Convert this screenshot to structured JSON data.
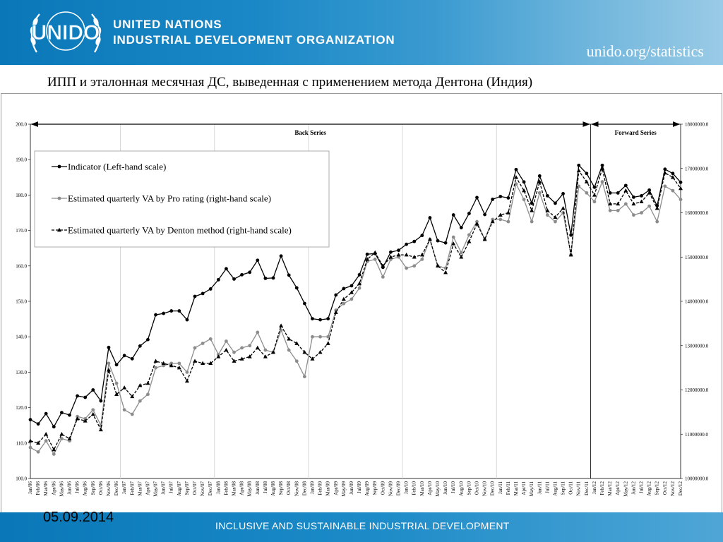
{
  "header": {
    "logo_text": "UNIDO",
    "org_line1": "UNITED NATIONS",
    "org_line2": "INDUSTRIAL DEVELOPMENT ORGANIZATION",
    "website": "unido.org/statistics"
  },
  "slide_title": "ИПП и  эталонная месячная ДС, выведенная с применением метода Дентона (Индия)",
  "footer": {
    "date": "05.09.2014",
    "slogan": "INCLUSIVE AND SUSTAINABLE INDUSTRIAL DEVELOPMENT"
  },
  "colors": {
    "header_blue": "#1a88c6",
    "indicator": "#000000",
    "pro_rating": "#8c8c8c",
    "denton": "#000000"
  },
  "chart_data": {
    "type": "line",
    "title": "",
    "xlabel": "",
    "ylabel_left": "",
    "ylabel_right": "",
    "ylim_left": [
      100,
      200
    ],
    "ylim_right": [
      10000000,
      18000000
    ],
    "left_ticks": [
      "100.0",
      "110.0",
      "120.0",
      "130.0",
      "140.0",
      "150.0",
      "160.0",
      "170.0",
      "180.0",
      "190.0",
      "200.0"
    ],
    "right_ticks": [
      "10000000.0",
      "11000000.0",
      "12000000.0",
      "13000000.0",
      "14000000.0",
      "15000000.0",
      "16000000.0",
      "17000000.0",
      "18000000.0"
    ],
    "grid": "vertical lines every 12 months",
    "legend_position": "top-left",
    "regions": [
      {
        "label": "Back Series",
        "from": "Jan/06",
        "to": "Dec/11"
      },
      {
        "label": "Forward Series",
        "from": "Jan/12",
        "to": "Dec/12"
      }
    ],
    "categories": [
      "Jan/06",
      "Feb/06",
      "Mar/06",
      "Apr/06",
      "May/06",
      "Jun/06",
      "Jul/06",
      "Aug/06",
      "Sep/06",
      "Oct/06",
      "Nov/06",
      "Dec/06",
      "Jan/07",
      "Feb/07",
      "Mar/07",
      "Apr/07",
      "May/07",
      "Jun/07",
      "Jul/07",
      "Aug/07",
      "Sep/07",
      "Oct/07",
      "Nov/07",
      "Dec/07",
      "Jan/08",
      "Feb/08",
      "Mar/08",
      "Apr/08",
      "May/08",
      "Jun/08",
      "Jul/08",
      "Aug/08",
      "Sep/08",
      "Oct/08",
      "Nov/08",
      "Dec/08",
      "Jan/09",
      "Feb/09",
      "Mar/09",
      "Apr/09",
      "May/09",
      "Jun/09",
      "Jul/09",
      "Aug/09",
      "Sep/09",
      "Oct/09",
      "Nov/09",
      "Dec/09",
      "Jan/10",
      "Feb/10",
      "Mar/10",
      "Apr/10",
      "May/10",
      "Jun/10",
      "Jul/10",
      "Aug/10",
      "Sep/10",
      "Oct/10",
      "Nov/10",
      "Dec/10",
      "Jan/11",
      "Feb/11",
      "Mar/11",
      "Apr/11",
      "May/11",
      "Jun/11",
      "Jul/11",
      "Aug/11",
      "Sep/11",
      "Oct/11",
      "Nov/11",
      "Dec/11",
      "Jan/12",
      "Feb/12",
      "Mar/12",
      "Apr/12",
      "May/12",
      "Jun/12",
      "Jul/12",
      "Aug/12",
      "Sep/12",
      "Oct/12",
      "Nov/12",
      "Dec/12"
    ],
    "series": [
      {
        "name": "Indicator (Left-hand scale)",
        "axis": "left",
        "marker": "circle",
        "dash": "solid",
        "color": "#000000",
        "values": [
          116.6,
          115.4,
          118.3,
          114.6,
          118.6,
          117.9,
          123.3,
          122.9,
          125.0,
          121.9,
          137.0,
          132.1,
          134.7,
          133.8,
          137.4,
          139.2,
          146.2,
          146.6,
          147.3,
          147.3,
          144.8,
          151.4,
          152.2,
          153.5,
          156.1,
          159.2,
          156.3,
          157.5,
          158.2,
          161.6,
          156.5,
          156.6,
          162.8,
          157.4,
          153.8,
          149.4,
          145.1,
          144.8,
          145.1,
          151.8,
          153.6,
          154.4,
          157.5,
          163.3,
          163.5,
          159.6,
          163.9,
          164.4,
          166.1,
          166.9,
          168.6,
          173.6,
          167.1,
          166.5,
          174.4,
          170.8,
          174.8,
          179.3,
          174.5,
          178.8,
          179.6,
          179.2,
          187.2,
          183.7,
          177.7,
          185.4,
          179.8,
          177.7,
          180.4,
          168.7,
          188.4,
          186.1,
          182.2,
          188.4,
          180.6,
          180.6,
          182.7,
          179.4,
          179.8,
          181.4,
          177.0,
          187.3,
          186.1,
          183.6
        ]
      },
      {
        "name": "Estimated quarterly VA by Pro rating  (right-hand scale)",
        "axis": "right",
        "marker": "circle",
        "dash": "solid",
        "color": "#8c8c8c",
        "values": [
          10700000,
          10600000,
          10850000,
          10550000,
          10900000,
          10850000,
          11400000,
          11350000,
          11550000,
          11200000,
          12600000,
          12150000,
          11550000,
          11450000,
          11750000,
          11900000,
          12500000,
          12550000,
          12600000,
          12600000,
          12400000,
          12950000,
          13050000,
          13150000,
          12800000,
          13100000,
          12850000,
          12950000,
          13000000,
          13300000,
          12900000,
          12850000,
          13350000,
          12900000,
          12650000,
          12300000,
          13200000,
          13200000,
          13200000,
          13800000,
          13950000,
          14050000,
          14300000,
          14900000,
          14950000,
          14550000,
          14950000,
          15000000,
          14750000,
          14800000,
          14950000,
          15400000,
          14800000,
          14750000,
          15450000,
          15100000,
          15500000,
          15800000,
          15400000,
          15850000,
          15850000,
          15800000,
          16650000,
          16300000,
          15800000,
          16450000,
          15950000,
          15800000,
          16000000,
          15050000,
          16600000,
          16450000,
          16250000,
          16700000,
          16050000,
          16050000,
          16200000,
          15950000,
          16000000,
          16150000,
          15800000,
          16600000,
          16500000,
          16300000
        ]
      },
      {
        "name": "Estimated quarterly VA by Denton method  (right-hand scale)",
        "axis": "right",
        "marker": "triangle",
        "dash": "dashed",
        "color": "#000000",
        "values": [
          10850000,
          10800000,
          11000000,
          10650000,
          11000000,
          10900000,
          11350000,
          11300000,
          11450000,
          11100000,
          12450000,
          11900000,
          12050000,
          11850000,
          12100000,
          12150000,
          12650000,
          12600000,
          12550000,
          12500000,
          12200000,
          12650000,
          12600000,
          12600000,
          12750000,
          12900000,
          12650000,
          12700000,
          12750000,
          12950000,
          12750000,
          12850000,
          13450000,
          13150000,
          13050000,
          12850000,
          12700000,
          12850000,
          13050000,
          13750000,
          14050000,
          14200000,
          14400000,
          14950000,
          15100000,
          14800000,
          15000000,
          15050000,
          15050000,
          15000000,
          15050000,
          15400000,
          14800000,
          14650000,
          15300000,
          15000000,
          15350000,
          15750000,
          15400000,
          15800000,
          15950000,
          16000000,
          16800000,
          16500000,
          16050000,
          16700000,
          16050000,
          15900000,
          16100000,
          15050000,
          16950000,
          16700000,
          16400000,
          17000000,
          16200000,
          16200000,
          16500000,
          16200000,
          16250000,
          16450000,
          16100000,
          16900000,
          16800000,
          16550000
        ]
      }
    ]
  }
}
